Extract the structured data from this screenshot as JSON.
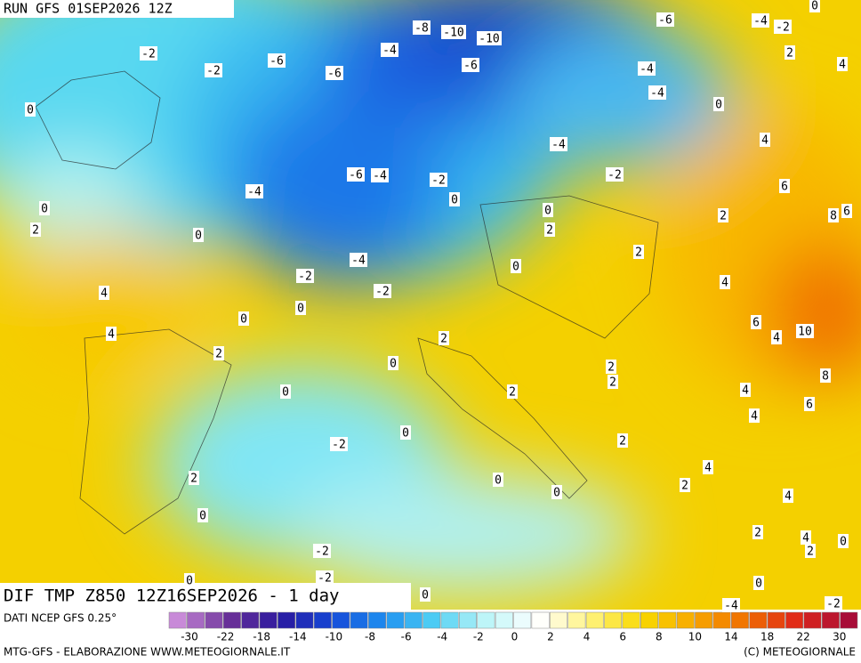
{
  "header": {
    "run": "RUN GFS 01SEP2026 12Z"
  },
  "footer": {
    "title": "DIF TMP Z850 12Z16SEP2026 - 1 day",
    "source": "DATI NCEP GFS 0.25°",
    "credit": "MTG-GFS - ELABORAZIONE WWW.METEOGIORNALE.IT",
    "copyright": "(C) METEOGIORNALE"
  },
  "colorbar": {
    "ticks": [
      -30,
      -22,
      -18,
      -14,
      -10,
      -8,
      -6,
      -4,
      -2,
      0,
      2,
      4,
      6,
      8,
      10,
      14,
      18,
      22,
      30
    ]
  },
  "map": {
    "labels": [
      -2,
      -2,
      -6,
      -6,
      -4,
      -8,
      -10,
      -10,
      -6,
      -6,
      -4,
      -2,
      0,
      2,
      4,
      -4,
      -4,
      0,
      0,
      -4,
      4,
      -6,
      -4,
      -2,
      -2,
      6,
      -4,
      0,
      0,
      0,
      2,
      8,
      6,
      2,
      0,
      2,
      2,
      -4,
      0,
      -2,
      4,
      -2,
      4,
      0,
      0,
      6,
      10,
      4,
      4,
      2,
      2,
      0,
      2,
      2,
      8,
      0,
      2,
      4,
      6,
      4,
      0,
      -2,
      2,
      4,
      2,
      0,
      0,
      2,
      4,
      0,
      2,
      4,
      0,
      -2,
      2,
      -2,
      0,
      0,
      0,
      -2,
      -4
    ]
  }
}
